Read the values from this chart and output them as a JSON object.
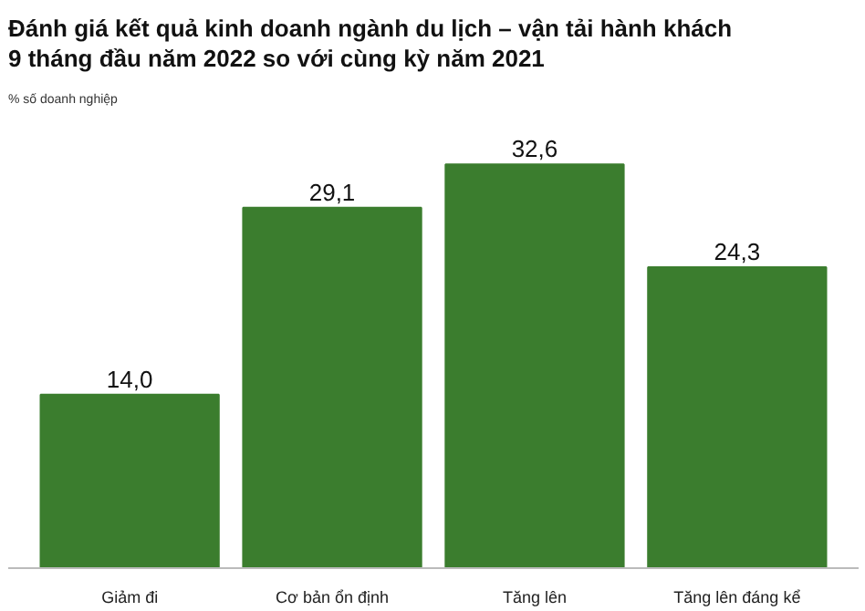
{
  "chart_data": {
    "type": "bar",
    "title": "Đánh giá kết quả kinh doanh ngành du lịch – vận tải hành khách\n9 tháng đầu năm 2022 so với cùng kỳ năm 2021",
    "subtitle": "% số doanh nghiệp",
    "categories": [
      "Giảm đi",
      "Cơ bản ổn định",
      "Tăng lên",
      "Tăng lên đáng kể"
    ],
    "values": [
      14.0,
      29.1,
      32.6,
      24.3
    ],
    "value_labels": [
      "14,0",
      "29,1",
      "32,6",
      "24,3"
    ],
    "color": "#3b7d2e"
  }
}
